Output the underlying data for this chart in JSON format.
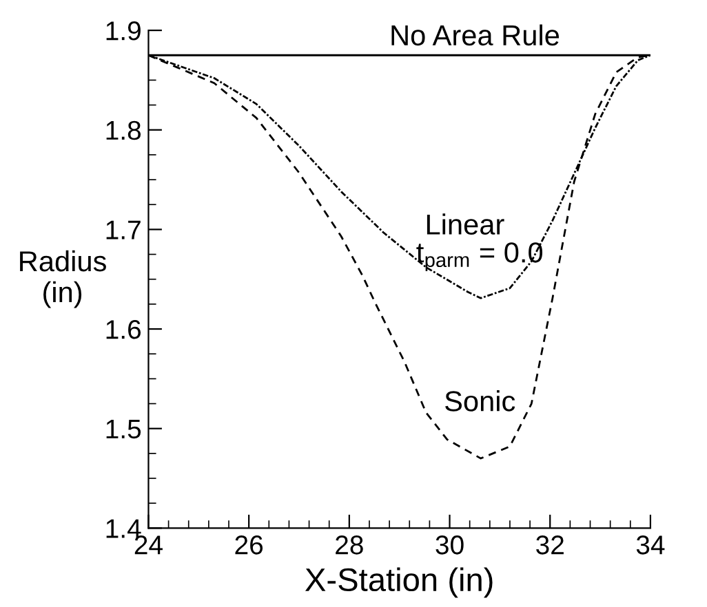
{
  "chart_data": {
    "type": "line",
    "xlabel": "X-Station (in)",
    "ylabel": "Radius\n(in)",
    "xlim": [
      24,
      34
    ],
    "ylim": [
      1.4,
      1.9
    ],
    "xticks": [
      24,
      26,
      28,
      30,
      32,
      34
    ],
    "yticks": [
      1.4,
      1.5,
      1.6,
      1.7,
      1.8,
      1.9
    ],
    "grid": false,
    "legend": false,
    "marker": "none",
    "series": [
      {
        "color": "#000000",
        "line_style": "solid",
        "x": [
          24,
          34
        ],
        "values": [
          1.875,
          1.875
        ]
      },
      {
        "color": "#000000",
        "line_style": "dashdot",
        "x": [
          24,
          25.31,
          26.15,
          27.0,
          27.84,
          28.68,
          29.53,
          30.37,
          30.62,
          31.2,
          31.63,
          32.05,
          32.48,
          32.9,
          33.32,
          33.75,
          34
        ],
        "values": [
          1.875,
          1.852,
          1.826,
          1.784,
          1.738,
          1.697,
          1.662,
          1.637,
          1.631,
          1.641,
          1.668,
          1.709,
          1.756,
          1.802,
          1.844,
          1.87,
          1.875
        ]
      },
      {
        "color": "#000000",
        "line_style": "dashed",
        "x": [
          24,
          25.31,
          26.15,
          27.0,
          27.84,
          28.26,
          28.51,
          29.1,
          29.53,
          29.95,
          30.62,
          31.2,
          31.63,
          32.05,
          32.48,
          32.9,
          33.32,
          33.75,
          34
        ],
        "values": [
          1.875,
          1.847,
          1.812,
          1.757,
          1.693,
          1.654,
          1.627,
          1.567,
          1.516,
          1.489,
          1.47,
          1.482,
          1.525,
          1.631,
          1.748,
          1.816,
          1.858,
          1.873,
          1.875
        ]
      }
    ],
    "annotations": [
      "No Area Rule",
      "Linear",
      "t$_{parm}$ = 0.0",
      "Sonic"
    ]
  }
}
